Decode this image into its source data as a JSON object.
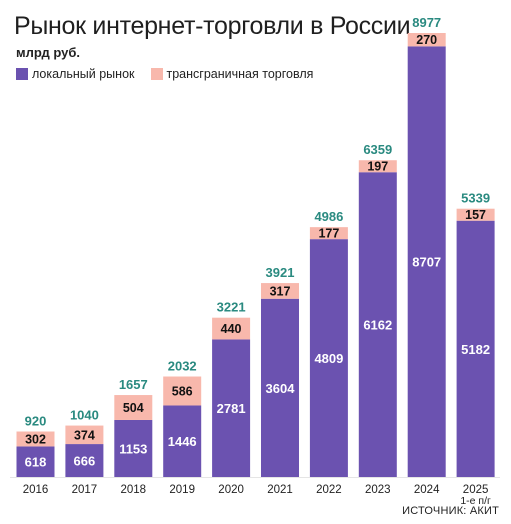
{
  "header": {
    "title": "Рынок интернет-торговли в России",
    "subtitle": "млрд руб.",
    "source": "ИСТОЧНИК: АКИТ"
  },
  "legend": [
    {
      "name": "локальный рынок",
      "color": "#6b52b0"
    },
    {
      "name": "трансграничная торговля",
      "color": "#f8b8ac"
    }
  ],
  "chart_data": {
    "type": "bar",
    "stacked": true,
    "title": "Рынок интернет-торговли в России",
    "subtitle": "млрд руб.",
    "categories": [
      "2016",
      "2017",
      "2018",
      "2019",
      "2020",
      "2021",
      "2022",
      "2023",
      "2024",
      "2025"
    ],
    "category_notes": {
      "2025": "1-е п/г"
    },
    "series": [
      {
        "name": "локальный рынок",
        "color": "#6b52b0",
        "values": [
          618,
          666,
          1153,
          1446,
          2781,
          3604,
          4809,
          6162,
          8707,
          5182
        ]
      },
      {
        "name": "трансграничная торговля",
        "color": "#f8b8ac",
        "values": [
          302,
          374,
          504,
          586,
          440,
          317,
          177,
          197,
          270,
          157
        ]
      }
    ],
    "totals": [
      920,
      1040,
      1657,
      2032,
      3221,
      3921,
      4986,
      6359,
      8977,
      5339
    ],
    "total_label_color": "#2a8a80",
    "ylim": [
      0,
      8977
    ],
    "grid": false,
    "legend_position": "top-left"
  }
}
